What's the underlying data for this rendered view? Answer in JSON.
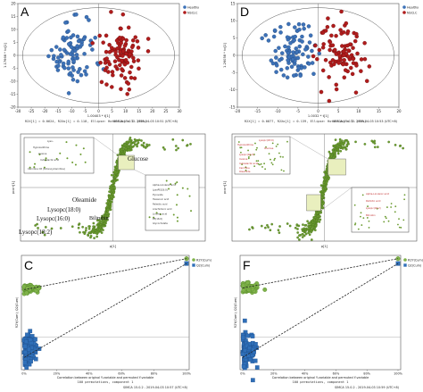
{
  "chart_data": [
    {
      "id": "A",
      "type": "scatter",
      "panel_label": "A",
      "xlabel": "1.00403 * t[1]",
      "ylabel": "1.17668 * to[1]",
      "xlim": [
        -30,
        30
      ],
      "ylim": [
        -20,
        20
      ],
      "xticks": [
        -30,
        -25,
        -20,
        -15,
        -10,
        -5,
        0,
        5,
        10,
        15,
        20,
        25,
        30
      ],
      "yticks": [
        -20,
        -15,
        -10,
        -5,
        0,
        5,
        10,
        15,
        20
      ],
      "caption": "R2X[1] = 0.0624, R2Xo[1] = 0.118, Ellipse: Hotelling's T2 (95%)",
      "watermark": "SIMCA 15.0.2 - 2019-04-03 10:51 (UTC+8)",
      "legend": [
        "Healthy",
        "NSCLC"
      ],
      "legend_placement": "top-right",
      "groups": [
        {
          "name": "Healthy",
          "color": "#3d72b8",
          "cx": -9,
          "cy": 0,
          "sx": 4,
          "sy": 6.5,
          "n": 90
        },
        {
          "name": "NSCLC",
          "color": "#b01c1c",
          "cx": 8.5,
          "cy": 0,
          "sx": 4,
          "sy": 6.5,
          "n": 100
        }
      ]
    },
    {
      "id": "D",
      "type": "scatter",
      "panel_label": "D",
      "xlabel": "1.0032 * t[1]",
      "ylabel": "1.26058 * to[1]",
      "xlim": [
        -20,
        20
      ],
      "ylim": [
        -15,
        15
      ],
      "xticks": [
        -20,
        -15,
        -10,
        -5,
        0,
        5,
        10,
        15,
        20
      ],
      "yticks": [
        -15,
        -10,
        -5,
        0,
        5,
        10,
        15
      ],
      "caption": "R2X[1] = 0.0877, R2Xo[1] = 0.139, Ellipse: Hotelling's T2 (95%)",
      "watermark": "SIMCA 15.0.2 - 2019-04-03 10:53 (UTC+8)",
      "legend": [
        "Healthy",
        "NSCLC"
      ],
      "legend_placement": "top-right",
      "groups": [
        {
          "name": "Healthy",
          "color": "#3d72b8",
          "cx": -6,
          "cy": 1,
          "sx": 3,
          "sy": 4.5,
          "n": 100
        },
        {
          "name": "NSCLC",
          "color": "#b01c1c",
          "cx": 6,
          "cy": 0,
          "sx": 2.8,
          "sy": 5,
          "n": 100
        }
      ]
    },
    {
      "id": "B",
      "type": "scatter",
      "panel_label": "B",
      "xlabel": "p[1]",
      "ylabel": "pcorr[1]",
      "callouts_large": [
        "Glucose",
        "Oleamide",
        "Lysopc(18:0)",
        "Lysopc(16:0)",
        "Lysopc(18:2)",
        "Bilirubin"
      ],
      "callouts_small": [
        "Lyso..",
        "Hypoxanthine",
        "Inosine",
        "Indolelactic acid",
        "Carnitine C8 (Octanoylcarnitine)",
        "Alpha-Linolenic acid",
        "LysoPE(18:0)",
        "Pyruvate",
        "Hexanoic acid",
        "Palmitic acid",
        "Arachidonic acid",
        "Linoleic acid",
        "PE(16:0)",
        "Glycocholate"
      ],
      "color": "#6a9a2f"
    },
    {
      "id": "E",
      "type": "scatter",
      "panel_label": "E",
      "xlabel": "p[1]",
      "ylabel": "pcorr[1]",
      "callouts_small": [
        "Lysopc(18:0)",
        "Hypoxanthine",
        "Glucose",
        "Lysopc(16:0)",
        "Inosine",
        "Indolelactic acid",
        "Carnitine",
        "Oleamide",
        "Alpha-Linolenic acid",
        "Palmitic acid",
        "Lysopc(18:2)",
        "Bilirubin"
      ],
      "color": "#6a9a2f",
      "label_color": "#c23030"
    },
    {
      "id": "C",
      "type": "scatter",
      "panel_label": "C",
      "xlabel": "Correlation between original Y-variable and permuted Y-variable",
      "ylabel": "R2Y(Cum); Q2(Cum)",
      "xlim": [
        0,
        1
      ],
      "ylim": [
        -0.4,
        1.0
      ],
      "xticklabels": [
        "0%",
        "20%",
        "40%",
        "60%",
        "80%",
        "100%"
      ],
      "caption": "100 permutations, component 1",
      "watermark": "SIMCA 15.0.2 - 2019-04-03 10:57 (UTC+8)",
      "series": [
        {
          "name": "R2Y(Cum)",
          "color": "#7fb24a",
          "original": 0.96,
          "perm_mean": 0.59,
          "perm_sd": 0.025,
          "intercept": 0.58
        },
        {
          "name": "Q2(Cum)",
          "color": "#2f6fb8",
          "original": 0.9,
          "perm_mean": -0.17,
          "perm_sd": 0.06,
          "intercept": -0.25
        }
      ],
      "legend_placement": "top-right"
    },
    {
      "id": "F",
      "type": "scatter",
      "panel_label": "F",
      "xlabel": "Correlation between original Y-variable and permuted Y-variable",
      "ylabel": "R2Y(Cum); Q2(Cum)",
      "xlim": [
        0,
        1
      ],
      "ylim": [
        -0.4,
        1.0
      ],
      "xticklabels": [
        "0%",
        "20%",
        "40%",
        "60%",
        "80%",
        "100%"
      ],
      "caption": "100 permutations, component 1",
      "watermark": "SIMCA 15.0.2 - 2019-04-03 10:59 (UTC+8)",
      "series": [
        {
          "name": "R2Y(Cum)",
          "color": "#7fb24a",
          "original": 0.96,
          "perm_mean": 0.6,
          "perm_sd": 0.025,
          "intercept": 0.6
        },
        {
          "name": "Q2(Cum)",
          "color": "#2f6fb8",
          "original": 0.9,
          "perm_mean": -0.17,
          "perm_sd": 0.06,
          "intercept": -0.25
        }
      ],
      "legend_placement": "top-right"
    }
  ]
}
